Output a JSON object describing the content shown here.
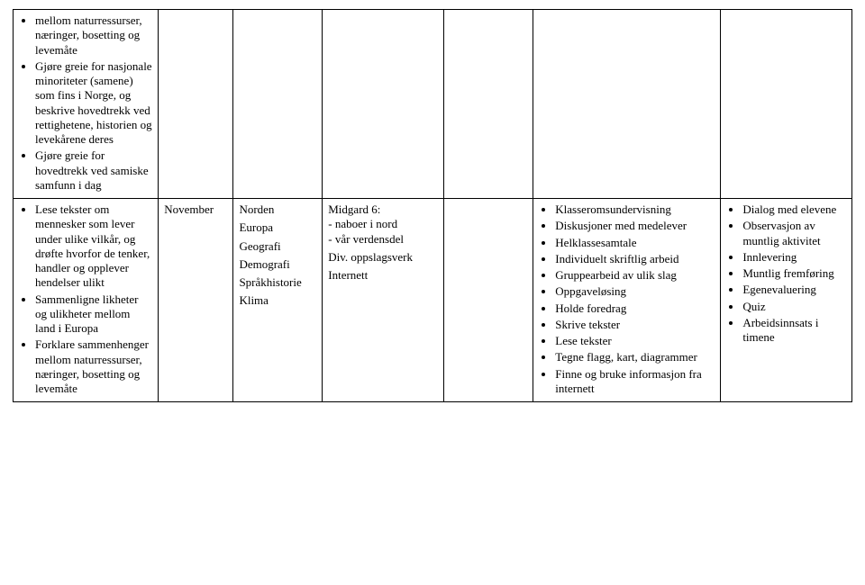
{
  "row1": {
    "col1_bullets": [
      "mellom naturressurser, næringer, bosetting og levemåte",
      "Gjøre greie for nasjonale minoriteter (samene) som fins i Norge, og beskrive hovedtrekk ved rettighetene, historien og levekårene deres",
      "Gjøre greie for hovedtrekk ved samiske samfunn i dag"
    ]
  },
  "row2": {
    "col1_bullets": [
      "Lese tekster om mennesker som lever under ulike vilkår, og drøfte hvorfor de tenker, handler og opplever hendelser ulikt",
      "Sammenligne likheter og ulikheter mellom land i Europa",
      "Forklare sammenhenger mellom naturressurser, næringer, bosetting og levemåte"
    ],
    "col2": "November",
    "col3_lines": [
      "Norden",
      "Europa",
      "Geografi",
      "Demografi",
      "Språkhistorie",
      "Klima"
    ],
    "col4_lines": [
      "Midgard 6:",
      "- naboer i nord",
      "- vår verdensdel",
      "",
      "Div. oppslagsverk",
      "",
      "Internett"
    ],
    "col6_bullets": [
      "Klasseromsundervisning",
      "Diskusjoner med medelever",
      "Helklassesamtale",
      "Individuelt skriftlig arbeid",
      "Gruppearbeid av ulik slag",
      "Oppgaveløsing",
      "Holde foredrag",
      "Skrive tekster",
      "Lese tekster",
      "Tegne flagg, kart, diagrammer",
      "Finne og bruke informasjon fra internett"
    ],
    "col7_bullets": [
      "Dialog med elevene",
      "Observasjon av muntlig aktivitet",
      "Innlevering",
      "Muntlig fremføring",
      "Egenevaluering",
      "Quiz",
      "Arbeidsinnsats i timene"
    ]
  }
}
